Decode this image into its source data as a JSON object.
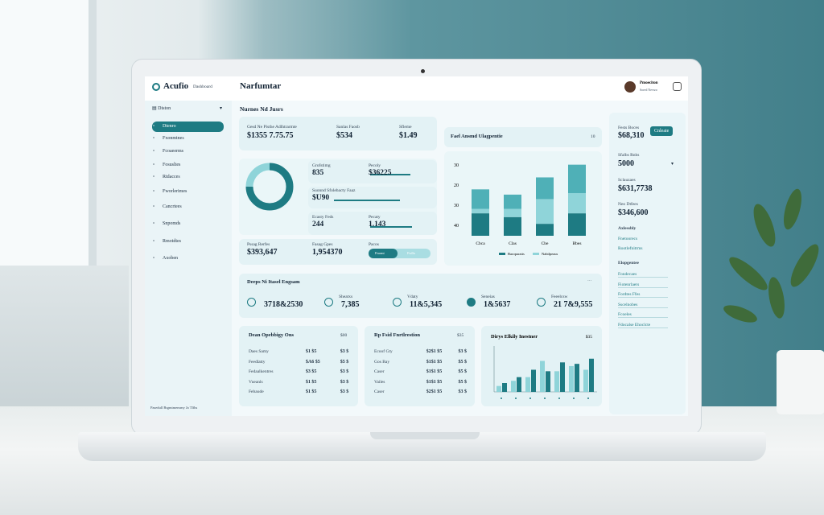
{
  "header": {
    "logo": "Acufio",
    "logo_sub": "Dashboard",
    "title": "Narfumtar",
    "user": "Pmoeciton",
    "user_sub": "Sored Nevsro"
  },
  "sidebar": {
    "menu": "Diston",
    "items": [
      "Dtenro",
      "Fxonmtnes",
      "Fcoaeerms",
      "Fosusltes",
      "Rtdacces",
      "Fworlerimes",
      "Cancrtees",
      "Snpomds",
      "Rmotdtes",
      "Axoben"
    ],
    "footer": "Pasedull Brgmtmemrny Ja Tlfhs"
  },
  "main": {
    "heading": "Nurnes Nd Jusrs",
    "summary": [
      {
        "label": "Gesd Ne Pisthe Adlhtrarmte",
        "value": "$1355 7.75.75"
      },
      {
        "label": "Sanlas Faosb",
        "value": "$534"
      },
      {
        "label": "Sfleme",
        "value": "$1.49"
      }
    ],
    "donut": {
      "values": [
        75,
        25
      ],
      "colors": [
        "#1e7b83",
        "#8fd4d9"
      ]
    },
    "metrics": [
      {
        "label": "Grofstimg",
        "value": "835"
      },
      {
        "label": "Pecoly",
        "value": "$36225"
      },
      {
        "label": "Suonnd Sfolebacty Faaz",
        "value": "$U90"
      },
      {
        "label": "Ecasty Feds",
        "value": "244"
      },
      {
        "label": "Pecaty",
        "value": "1.143"
      }
    ],
    "totals": [
      {
        "label": "Pssag Rerfes",
        "value": "$393,647"
      },
      {
        "label": "Fasag Gpes",
        "value": "1,954370"
      }
    ],
    "toggle": {
      "label": "Pacos",
      "options": [
        "Fnomt",
        "Fsdla"
      ]
    },
    "engagement": {
      "title": "Deeps Ni Itasel Engsam",
      "items": [
        {
          "value": "3718&2530"
        },
        {
          "label": "Sheatxs",
          "value": "7,385"
        },
        {
          "label": "Vdaty",
          "value": "11&5,345"
        },
        {
          "label": "Seneias",
          "value": "1&5637"
        },
        {
          "label": "Feeelcsw",
          "value": "21 7&9,555"
        }
      ]
    },
    "tables": [
      {
        "title": "Dean Opebbigy Ons",
        "corner": "$00",
        "rows": [
          [
            "Daes Samy",
            "$1 $5",
            "$3 $"
          ],
          [
            "Feedlatty",
            "$A6 $5",
            "$5 $"
          ],
          [
            "Fedaalkentres",
            "$3 $5",
            "$3 $"
          ],
          [
            "Vueanls",
            "$1 $5",
            "$3 $"
          ],
          [
            "Febaude",
            "$1 $5",
            "$3 $"
          ]
        ]
      },
      {
        "title": "Rp Fsid Fnrtlrestion",
        "corner": "$35",
        "rows": [
          [
            "Ecoof Gty",
            "$2$1 $5",
            "$3 $"
          ],
          [
            "Gos Bay",
            "$1$1 $5",
            "$5 $"
          ],
          [
            "Caser",
            "$1$1 $5",
            "$5 $"
          ],
          [
            "Vailes",
            "$1$1 $5",
            "$5 $"
          ],
          [
            "Caser",
            "$2$1 $5",
            "$3 $"
          ]
        ]
      }
    ]
  },
  "bar_chart": {
    "type": "bar",
    "title": "Fael Ansmd Ulagpentie",
    "badge": "10",
    "axis_labels": [
      "30",
      "20",
      "30",
      "40"
    ],
    "categories": [
      "Cbca",
      "Clas",
      "Cbe",
      "Bbes"
    ],
    "ylim": [
      0,
      100
    ],
    "series": [
      {
        "name": "Baroparatts",
        "color": "#1e7b83",
        "values": [
          30,
          25,
          16,
          30
        ]
      },
      {
        "name": "Nabtlpeaus",
        "color": "#8fd4d9",
        "values": [
          6,
          11,
          33,
          27
        ]
      },
      {
        "color": "#4fb0b7",
        "values": [
          26,
          19,
          29,
          38
        ]
      }
    ]
  },
  "small_chart": {
    "type": "bar",
    "title": "Dirys Elkily Inestner",
    "corner": "$35",
    "categories": [
      null,
      null,
      null,
      null,
      null,
      null,
      null
    ],
    "ylim": [
      0,
      60
    ],
    "series": [
      {
        "color": "#8fd4d9",
        "values": [
          8,
          15,
          20,
          42,
          28,
          35,
          30
        ]
      },
      {
        "color": "#1e7b83",
        "values": [
          12,
          20,
          30,
          28,
          40,
          38,
          45
        ]
      }
    ]
  },
  "right_panel": {
    "title": "Fests Boces",
    "button": "Cnleaie",
    "value1": "$68,310",
    "label2": "Sfalbs Rnbs",
    "value2": "5000",
    "label3": "Sclauzaes",
    "value3": "$631,7738",
    "label4": "Neo Dtfees",
    "value4": "$346,600",
    "section1": "Axlessbly",
    "links": [
      "Fnetoorecs",
      "Rootlefnitrms"
    ],
    "section2": "Elopgentee",
    "list": [
      "Fondecaes",
      "Fiotenrlaers",
      "Fordtes Ffes",
      "Sscelnobes",
      "Fcoeles",
      "Fdocalse Ehoclcte"
    ]
  }
}
